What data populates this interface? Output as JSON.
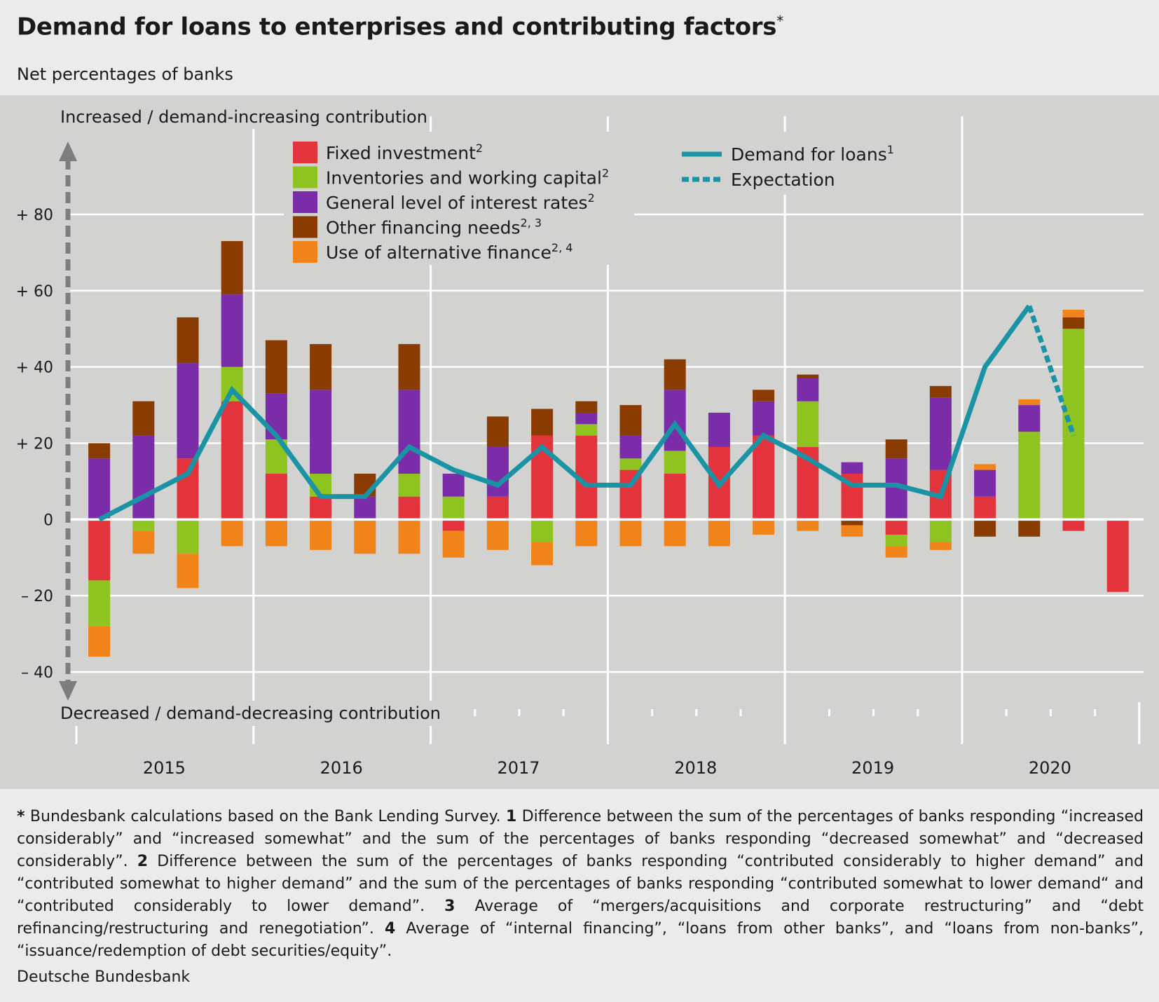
{
  "title": "Demand for loans to enterprises and contributing factors",
  "title_marker": "*",
  "subtitle": "Net percentages of banks",
  "colors": {
    "panel_bg": "#d2d2d1",
    "page_bg": "#ebebeb",
    "fixed": "#e3333c",
    "inventories": "#8fc31f",
    "interest": "#7b2ca8",
    "other": "#8a3b00",
    "alternative": "#f08319",
    "demand": "#1a94a5",
    "arrow": "#7d7d7d"
  },
  "chart_data": {
    "type": "bar",
    "stacked": true,
    "annotation_top": "Increased / demand-increasing contribution",
    "annotation_bottom": "Decreased / demand-decreasing contribution",
    "ylim": [
      -40,
      80
    ],
    "yticks": [
      {
        "value": 80,
        "label": "+ 80"
      },
      {
        "value": 60,
        "label": "+ 60"
      },
      {
        "value": 40,
        "label": "+ 40"
      },
      {
        "value": 20,
        "label": "+ 20"
      },
      {
        "value": 0,
        "label": "0"
      },
      {
        "value": -20,
        "label": "– 20"
      },
      {
        "value": -40,
        "label": "– 40"
      }
    ],
    "years": [
      "2015",
      "2016",
      "2017",
      "2018",
      "2019",
      "2020"
    ],
    "quarters": [
      "2015 Q1",
      "2015 Q2",
      "2015 Q3",
      "2015 Q4",
      "2016 Q1",
      "2016 Q2",
      "2016 Q3",
      "2016 Q4",
      "2017 Q1",
      "2017 Q2",
      "2017 Q3",
      "2017 Q4",
      "2018 Q1",
      "2018 Q2",
      "2018 Q3",
      "2018 Q4",
      "2019 Q1",
      "2019 Q2",
      "2019 Q3",
      "2019 Q4",
      "2020 Q1",
      "2020 Q2",
      "2020 Q3",
      "2020 Q4"
    ],
    "grid": true,
    "legend_position": "top",
    "bar_series": [
      {
        "name": "Fixed investment",
        "marker": "2",
        "color_key": "fixed",
        "values": [
          -16,
          0,
          16,
          31,
          12,
          6,
          0,
          6,
          -3,
          6,
          22,
          22,
          13,
          12,
          19,
          22,
          19,
          12,
          -4,
          13,
          6,
          0,
          -3,
          -19
        ]
      },
      {
        "name": "Inventories and working capital",
        "marker": "2",
        "color_key": "inventories",
        "values": [
          -12,
          -3,
          -9,
          9,
          9,
          6,
          0,
          6,
          6,
          0,
          -6,
          3,
          3,
          6,
          0,
          0,
          12,
          0,
          -3,
          -6,
          0,
          23,
          50,
          0
        ]
      },
      {
        "name": "General level of interest rates",
        "marker": "2",
        "color_key": "interest",
        "values": [
          16,
          22,
          25,
          19,
          12,
          22,
          6,
          22,
          6,
          13,
          0,
          3,
          6,
          16,
          9,
          9,
          6,
          3,
          16,
          19,
          7,
          7,
          0,
          0
        ]
      },
      {
        "name": "Other financing needs",
        "marker": "2, 3",
        "color_key": "other",
        "values": [
          4,
          9,
          12,
          14,
          14,
          12,
          6,
          12,
          0,
          8,
          7,
          3,
          8,
          8,
          0,
          3,
          1,
          -1.5,
          5,
          3,
          -4.5,
          -4.5,
          3,
          0
        ]
      },
      {
        "name": "Use of alternative finance",
        "marker": "2, 4",
        "color_key": "alternative",
        "values": [
          -8,
          -6,
          -9,
          -7,
          -7,
          -8,
          -9,
          -9,
          -7,
          -8,
          -6,
          -7,
          -7,
          -7,
          -7,
          -4,
          -3,
          -3,
          -3,
          -2,
          1.5,
          1.5,
          2,
          0
        ]
      }
    ],
    "line_series": [
      {
        "name": "Demand for loans",
        "marker": "1",
        "color_key": "demand",
        "values": [
          0,
          6,
          12,
          34,
          22,
          6,
          6,
          19,
          13,
          9,
          19,
          9,
          9,
          25,
          9,
          22,
          16,
          9,
          9,
          6,
          40,
          56,
          null,
          null
        ]
      },
      {
        "name": "Expectation",
        "marker": "",
        "color_key": "demand",
        "dashed": true,
        "values": [
          null,
          null,
          null,
          null,
          null,
          null,
          null,
          null,
          null,
          null,
          null,
          null,
          null,
          null,
          null,
          null,
          null,
          null,
          null,
          null,
          null,
          56,
          22,
          null
        ]
      }
    ]
  },
  "footnotes": [
    {
      "mark": "*",
      "text": " Bundesbank calculations based on the Bank Lending Survey. "
    },
    {
      "mark": "1",
      "text": " Difference between the sum of the percentages of banks responding “increased considerably” and “increased somewhat” and the sum of the percentages of banks responding “decreased somewhat” and “decreased considerably”. "
    },
    {
      "mark": "2",
      "text": " Difference between the sum of the percentages of banks responding “contributed considerably to higher demand” and “contributed somewhat to higher demand” and the sum of the percentages of banks responding “contributed somewhat to lower demand“ and “contributed considerably to lower demand”. "
    },
    {
      "mark": "3",
      "text": " Average of “mergers/acquisitions and corporate restructuring” and “debt refinancing/restructuring and renegotiation”. "
    },
    {
      "mark": "4",
      "text": " Average of “internal financing”, “loans from other banks”, and “loans from non-banks”, “issuance/redemption of debt securities/equity”."
    }
  ],
  "source": "Deutsche Bundesbank"
}
